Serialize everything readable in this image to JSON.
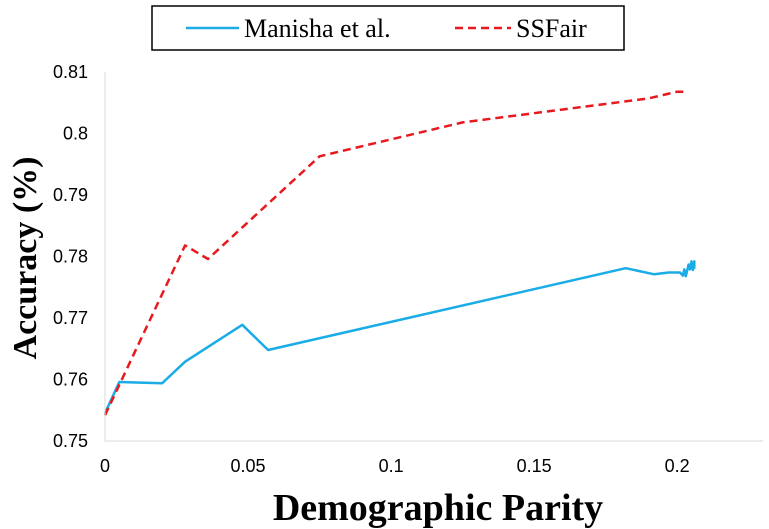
{
  "chart_data": {
    "type": "line",
    "xlabel": "Demographic Parity",
    "ylabel": "Accuracy (%)",
    "xlim": [
      0,
      0.23
    ],
    "ylim": [
      0.75,
      0.81
    ],
    "xticks": [
      "0",
      "0.05",
      "0.1",
      "0.15",
      "0.2"
    ],
    "xtick_values": [
      0,
      0.05,
      0.1,
      0.15,
      0.2
    ],
    "yticks": [
      "0.75",
      "0.76",
      "0.77",
      "0.78",
      "0.79",
      "0.8",
      "0.81"
    ],
    "ytick_values": [
      0.75,
      0.76,
      0.77,
      0.78,
      0.79,
      0.8,
      0.81
    ],
    "grid": false,
    "legend_position": "top",
    "series": [
      {
        "name": "Manisha et al.",
        "color": "#1AACE6",
        "dash": "solid",
        "points": [
          [
            0.0,
            0.7545
          ],
          [
            0.005,
            0.7596
          ],
          [
            0.02,
            0.7594
          ],
          [
            0.028,
            0.7629
          ],
          [
            0.048,
            0.7689
          ],
          [
            0.057,
            0.7648
          ],
          [
            0.182,
            0.7781
          ],
          [
            0.192,
            0.7771
          ],
          [
            0.197,
            0.7774
          ],
          [
            0.201,
            0.7774
          ],
          [
            0.202,
            0.7769
          ],
          [
            0.2025,
            0.7779
          ],
          [
            0.203,
            0.7768
          ],
          [
            0.204,
            0.7787
          ],
          [
            0.2045,
            0.7779
          ],
          [
            0.205,
            0.7792
          ],
          [
            0.2055,
            0.7778
          ],
          [
            0.206,
            0.7792
          ],
          [
            0.206,
            0.778
          ]
        ]
      },
      {
        "name": "SSFair",
        "color": "#E8191E",
        "dash": "dashed",
        "points": [
          [
            0.0,
            0.7542
          ],
          [
            0.028,
            0.7818
          ],
          [
            0.036,
            0.7796
          ],
          [
            0.075,
            0.7963
          ],
          [
            0.125,
            0.8018
          ],
          [
            0.19,
            0.8057
          ],
          [
            0.2,
            0.8068
          ],
          [
            0.203,
            0.8068
          ]
        ]
      }
    ]
  }
}
